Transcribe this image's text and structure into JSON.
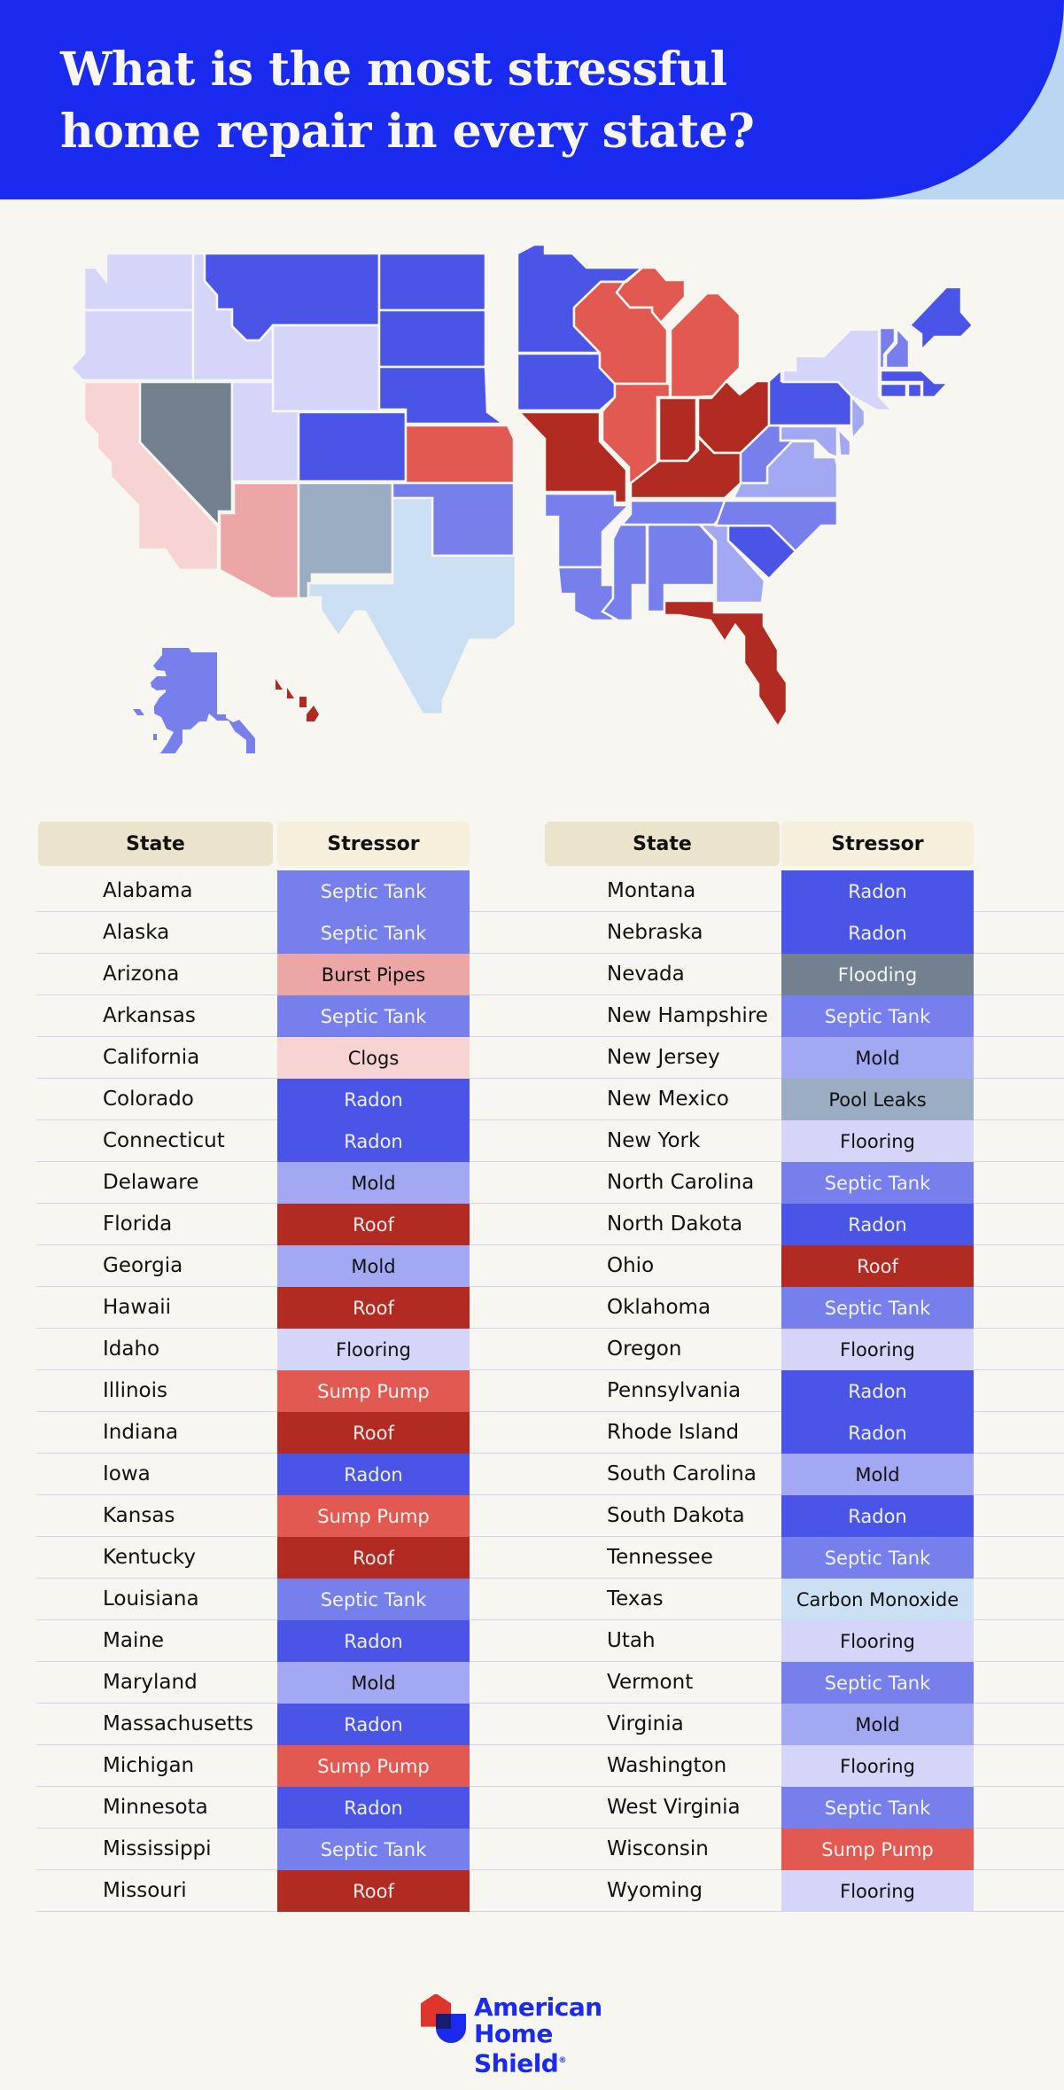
{
  "header": {
    "title_line1": "What is the most stressful",
    "title_line2": "home repair in every state?"
  },
  "colors": {
    "Septic Tank": {
      "bg": "#777fed",
      "fg": "#f2f3ff"
    },
    "Radon": {
      "bg": "#4a55e8",
      "fg": "#eef0ff"
    },
    "Burst Pipes": {
      "bg": "#eda6a6",
      "fg": "#111111"
    },
    "Clogs": {
      "bg": "#f7d3d3",
      "fg": "#111111"
    },
    "Mold": {
      "bg": "#a2a8f2",
      "fg": "#111111"
    },
    "Roof": {
      "bg": "#b12b22",
      "fg": "#fbeaea"
    },
    "Flooring": {
      "bg": "#d4d5f8",
      "fg": "#111111"
    },
    "Sump Pump": {
      "bg": "#e25952",
      "fg": "#fff2f1"
    },
    "Flooding": {
      "bg": "#72808f",
      "fg": "#f3f5f8"
    },
    "Pool Leaks": {
      "bg": "#9aadc3",
      "fg": "#111111"
    },
    "Carbon Monoxide": {
      "bg": "#cce0f4",
      "fg": "#111111"
    }
  },
  "table": {
    "col_state": "State",
    "col_stressor": "Stressor",
    "left_rows": [
      {
        "state": "Alabama",
        "stressor": "Septic Tank"
      },
      {
        "state": "Alaska",
        "stressor": "Septic Tank"
      },
      {
        "state": "Arizona",
        "stressor": "Burst Pipes"
      },
      {
        "state": "Arkansas",
        "stressor": "Septic Tank"
      },
      {
        "state": "California",
        "stressor": "Clogs"
      },
      {
        "state": "Colorado",
        "stressor": "Radon"
      },
      {
        "state": "Connecticut",
        "stressor": "Radon"
      },
      {
        "state": "Delaware",
        "stressor": "Mold"
      },
      {
        "state": "Florida",
        "stressor": "Roof"
      },
      {
        "state": "Georgia",
        "stressor": "Mold"
      },
      {
        "state": "Hawaii",
        "stressor": "Roof"
      },
      {
        "state": "Idaho",
        "stressor": "Flooring"
      },
      {
        "state": "Illinois",
        "stressor": "Sump Pump"
      },
      {
        "state": "Indiana",
        "stressor": "Roof"
      },
      {
        "state": "Iowa",
        "stressor": "Radon"
      },
      {
        "state": "Kansas",
        "stressor": "Sump Pump"
      },
      {
        "state": "Kentucky",
        "stressor": "Roof"
      },
      {
        "state": "Louisiana",
        "stressor": "Septic Tank"
      },
      {
        "state": "Maine",
        "stressor": "Radon"
      },
      {
        "state": "Maryland",
        "stressor": "Mold"
      },
      {
        "state": "Massachusetts",
        "stressor": "Radon"
      },
      {
        "state": "Michigan",
        "stressor": "Sump Pump"
      },
      {
        "state": "Minnesota",
        "stressor": "Radon"
      },
      {
        "state": "Mississippi",
        "stressor": "Septic Tank"
      },
      {
        "state": "Missouri",
        "stressor": "Roof"
      }
    ],
    "right_rows": [
      {
        "state": "Montana",
        "stressor": "Radon"
      },
      {
        "state": "Nebraska",
        "stressor": "Radon"
      },
      {
        "state": "Nevada",
        "stressor": "Flooding"
      },
      {
        "state": "New Hampshire",
        "stressor": "Septic Tank"
      },
      {
        "state": "New Jersey",
        "stressor": "Mold"
      },
      {
        "state": "New Mexico",
        "stressor": "Pool Leaks"
      },
      {
        "state": "New York",
        "stressor": "Flooring"
      },
      {
        "state": "North Carolina",
        "stressor": "Septic Tank"
      },
      {
        "state": "North Dakota",
        "stressor": "Radon"
      },
      {
        "state": "Ohio",
        "stressor": "Roof"
      },
      {
        "state": "Oklahoma",
        "stressor": "Septic Tank"
      },
      {
        "state": "Oregon",
        "stressor": "Flooring"
      },
      {
        "state": "Pennsylvania",
        "stressor": "Radon"
      },
      {
        "state": "Rhode Island",
        "stressor": "Radon"
      },
      {
        "state": "South Carolina",
        "stressor": "Mold"
      },
      {
        "state": "South Dakota",
        "stressor": "Radon"
      },
      {
        "state": "Tennessee",
        "stressor": "Septic Tank"
      },
      {
        "state": "Texas",
        "stressor": "Carbon Monoxide"
      },
      {
        "state": "Utah",
        "stressor": "Flooring"
      },
      {
        "state": "Vermont",
        "stressor": "Septic Tank"
      },
      {
        "state": "Virginia",
        "stressor": "Mold"
      },
      {
        "state": "Washington",
        "stressor": "Flooring"
      },
      {
        "state": "West Virginia",
        "stressor": "Septic Tank"
      },
      {
        "state": "Wisconsin",
        "stressor": "Sump Pump"
      },
      {
        "state": "Wyoming",
        "stressor": "Flooring"
      }
    ]
  },
  "logo": {
    "line1": "American",
    "line2": "Home Shield",
    "mark": "®"
  },
  "chart_data": {
    "type": "table",
    "title": "What is the most stressful home repair in every state?",
    "columns": [
      "State",
      "Stressor"
    ],
    "legend_colors": {
      "Radon": "#4a55e8",
      "Septic Tank": "#777fed",
      "Mold": "#a2a8f2",
      "Flooring": "#d4d5f8",
      "Carbon Monoxide": "#cce0f4",
      "Pool Leaks": "#9aadc3",
      "Flooding": "#72808f",
      "Clogs": "#f7d3d3",
      "Burst Pipes": "#eda6a6",
      "Sump Pump": "#e25952",
      "Roof": "#b12b22"
    },
    "rows": [
      [
        "Alabama",
        "Septic Tank"
      ],
      [
        "Alaska",
        "Septic Tank"
      ],
      [
        "Arizona",
        "Burst Pipes"
      ],
      [
        "Arkansas",
        "Septic Tank"
      ],
      [
        "California",
        "Clogs"
      ],
      [
        "Colorado",
        "Radon"
      ],
      [
        "Connecticut",
        "Radon"
      ],
      [
        "Delaware",
        "Mold"
      ],
      [
        "Florida",
        "Roof"
      ],
      [
        "Georgia",
        "Mold"
      ],
      [
        "Hawaii",
        "Roof"
      ],
      [
        "Idaho",
        "Flooring"
      ],
      [
        "Illinois",
        "Sump Pump"
      ],
      [
        "Indiana",
        "Roof"
      ],
      [
        "Iowa",
        "Radon"
      ],
      [
        "Kansas",
        "Sump Pump"
      ],
      [
        "Kentucky",
        "Roof"
      ],
      [
        "Louisiana",
        "Septic Tank"
      ],
      [
        "Maine",
        "Radon"
      ],
      [
        "Maryland",
        "Mold"
      ],
      [
        "Massachusetts",
        "Radon"
      ],
      [
        "Michigan",
        "Sump Pump"
      ],
      [
        "Minnesota",
        "Radon"
      ],
      [
        "Mississippi",
        "Septic Tank"
      ],
      [
        "Missouri",
        "Roof"
      ],
      [
        "Montana",
        "Radon"
      ],
      [
        "Nebraska",
        "Radon"
      ],
      [
        "Nevada",
        "Flooding"
      ],
      [
        "New Hampshire",
        "Septic Tank"
      ],
      [
        "New Jersey",
        "Mold"
      ],
      [
        "New Mexico",
        "Pool Leaks"
      ],
      [
        "New York",
        "Flooring"
      ],
      [
        "North Carolina",
        "Septic Tank"
      ],
      [
        "North Dakota",
        "Radon"
      ],
      [
        "Ohio",
        "Roof"
      ],
      [
        "Oklahoma",
        "Septic Tank"
      ],
      [
        "Oregon",
        "Flooring"
      ],
      [
        "Pennsylvania",
        "Radon"
      ],
      [
        "Rhode Island",
        "Radon"
      ],
      [
        "South Carolina",
        "Mold"
      ],
      [
        "South Dakota",
        "Radon"
      ],
      [
        "Tennessee",
        "Septic Tank"
      ],
      [
        "Texas",
        "Carbon Monoxide"
      ],
      [
        "Utah",
        "Flooring"
      ],
      [
        "Vermont",
        "Septic Tank"
      ],
      [
        "Virginia",
        "Mold"
      ],
      [
        "Washington",
        "Flooring"
      ],
      [
        "West Virginia",
        "Septic Tank"
      ],
      [
        "Wisconsin",
        "Sump Pump"
      ],
      [
        "Wyoming",
        "Flooring"
      ]
    ]
  }
}
